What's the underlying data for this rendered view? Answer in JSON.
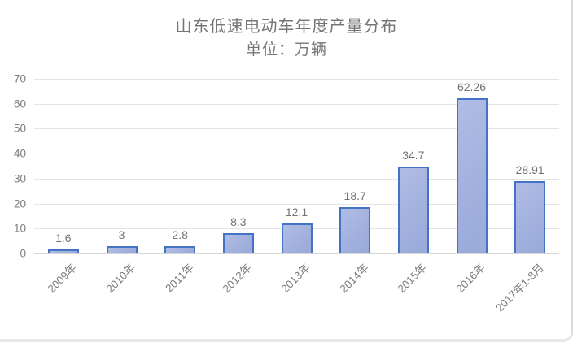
{
  "chart_data": {
    "type": "bar",
    "title": "山东低速电动车年度产量分布",
    "subtitle": "单位：万辆",
    "categories": [
      "2009年",
      "2010年",
      "2011年",
      "2012年",
      "2013年",
      "2014年",
      "2015年",
      "2016年",
      "2017年1-8月"
    ],
    "values": [
      1.6,
      3,
      2.8,
      8.3,
      12.1,
      18.7,
      34.7,
      62.26,
      28.91
    ],
    "data_labels": [
      "1.6",
      "3",
      "2.8",
      "8.3",
      "12.1",
      "18.7",
      "34.7",
      "62.26",
      "28.91"
    ],
    "xlabel": "",
    "ylabel": "",
    "ylim": [
      0,
      70
    ],
    "yticks": [
      0,
      10,
      20,
      30,
      40,
      50,
      60,
      70
    ],
    "grid": true,
    "legend": "none",
    "colors": {
      "bar_fill": "#a2b1de",
      "bar_border": "#4472c4",
      "gridline": "#e4e4e4",
      "axis_line": "#d6d6d6",
      "title_text": "#757575",
      "tick_text": "#7c7c7c",
      "value_text": "#737373",
      "card_border_right": "#dbdbdb",
      "card_border_bottom": "#e8e8e8",
      "background": "#ffffff"
    }
  }
}
